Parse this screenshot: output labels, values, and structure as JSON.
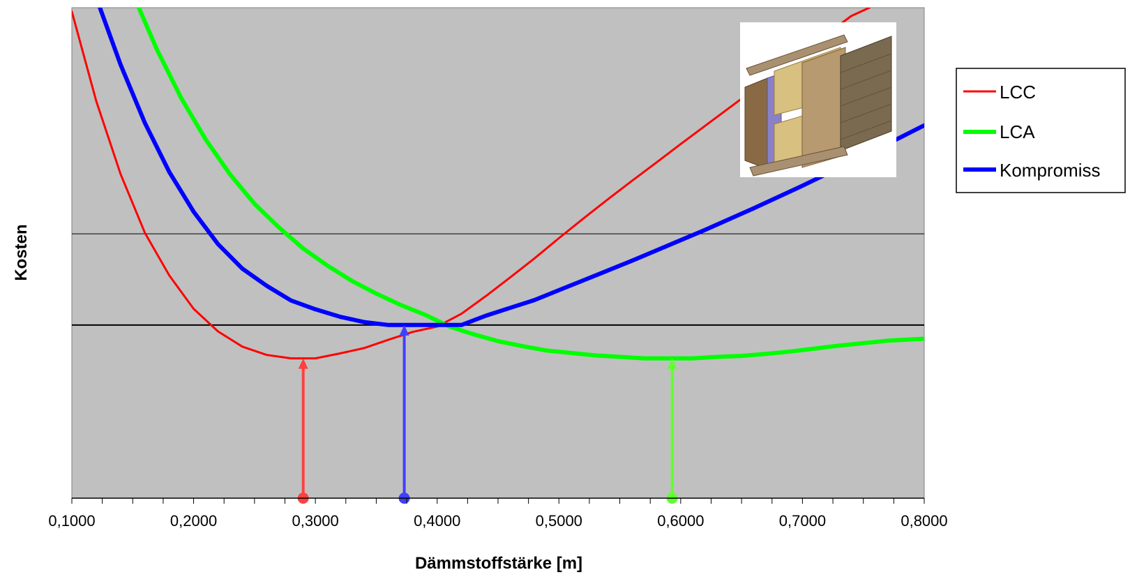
{
  "chart_data": {
    "type": "line",
    "title": "",
    "xlabel": "Dämmstoffstärke [m]",
    "ylabel": "Kosten",
    "xlim": [
      0.1,
      0.8
    ],
    "ylim": [
      0,
      100
    ],
    "x_tick_labels": [
      "0,1000",
      "0,2000",
      "0,3000",
      "0,4000",
      "0,5000",
      "0,6000",
      "0,7000",
      "0,8000"
    ],
    "x_ticks": [
      0.1,
      0.2,
      0.3,
      0.4,
      0.5,
      0.6,
      0.7,
      0.8
    ],
    "y_ticks_labeled": false,
    "reference_lines": [
      {
        "y": 53.9,
        "style": "thin"
      },
      {
        "y": 35.3,
        "style": "medium"
      }
    ],
    "legend_position": "right",
    "grid": false,
    "background_color": "#c0c0c0",
    "series": [
      {
        "name": "LCC",
        "color": "#ff0000",
        "x": [
          0.1,
          0.12,
          0.14,
          0.16,
          0.18,
          0.2,
          0.22,
          0.24,
          0.26,
          0.28,
          0.29,
          0.3,
          0.32,
          0.34,
          0.36,
          0.38,
          0.4,
          0.42,
          0.44,
          0.46,
          0.48,
          0.5,
          0.52,
          0.54,
          0.56,
          0.58,
          0.6,
          0.62,
          0.64,
          0.66,
          0.68,
          0.7,
          0.72,
          0.74,
          0.755
        ],
        "y": [
          99.2,
          81.0,
          66.1,
          54.1,
          45.4,
          38.6,
          34.0,
          30.9,
          29.2,
          28.5,
          28.5,
          28.5,
          29.5,
          30.6,
          32.3,
          33.9,
          35.0,
          37.6,
          41.2,
          45.0,
          48.9,
          53.0,
          57.0,
          60.9,
          64.7,
          68.4,
          72.2,
          75.9,
          79.6,
          83.3,
          87.2,
          90.9,
          94.6,
          98.3,
          100.0
        ]
      },
      {
        "name": "LCA",
        "color": "#00ff00",
        "x": [
          0.155,
          0.17,
          0.19,
          0.21,
          0.23,
          0.25,
          0.27,
          0.29,
          0.31,
          0.33,
          0.35,
          0.37,
          0.39,
          0.41,
          0.43,
          0.45,
          0.47,
          0.49,
          0.51,
          0.53,
          0.55,
          0.57,
          0.59,
          0.61,
          0.63,
          0.65,
          0.67,
          0.69,
          0.71,
          0.73,
          0.75,
          0.77,
          0.8
        ],
        "y": [
          100.0,
          91.4,
          81.5,
          73.1,
          66.0,
          60.0,
          55.2,
          50.9,
          47.4,
          44.3,
          41.7,
          39.4,
          37.4,
          35.0,
          33.4,
          32.0,
          31.0,
          30.1,
          29.6,
          29.1,
          28.8,
          28.5,
          28.5,
          28.5,
          28.8,
          29.0,
          29.4,
          29.9,
          30.5,
          31.1,
          31.6,
          32.1,
          32.5
        ]
      },
      {
        "name": "Kompromiss",
        "color": "#0000ff",
        "x": [
          0.123,
          0.14,
          0.16,
          0.18,
          0.2,
          0.22,
          0.24,
          0.26,
          0.28,
          0.3,
          0.32,
          0.34,
          0.36,
          0.38,
          0.4,
          0.42,
          0.44,
          0.46,
          0.48,
          0.5,
          0.52,
          0.54,
          0.56,
          0.58,
          0.6,
          0.62,
          0.64,
          0.66,
          0.68,
          0.7,
          0.72,
          0.74,
          0.76,
          0.78,
          0.8
        ],
        "y": [
          100.0,
          88.4,
          76.5,
          66.5,
          58.4,
          51.8,
          46.8,
          43.3,
          40.3,
          38.5,
          37.0,
          35.9,
          35.3,
          35.3,
          35.3,
          35.3,
          37.2,
          38.8,
          40.4,
          42.4,
          44.4,
          46.4,
          48.4,
          50.5,
          52.6,
          54.7,
          56.9,
          59.1,
          61.4,
          63.7,
          66.1,
          68.5,
          71.0,
          73.5,
          76.0
        ]
      }
    ],
    "optimum_markers": [
      {
        "series": "LCC",
        "x": 0.29,
        "y": 28.5,
        "color": "#ff4040"
      },
      {
        "series": "Kompromiss",
        "x": 0.373,
        "y": 35.3,
        "color": "#4040ff"
      },
      {
        "series": "LCA",
        "x": 0.593,
        "y": 28.5,
        "color": "#60ff30"
      }
    ]
  }
}
